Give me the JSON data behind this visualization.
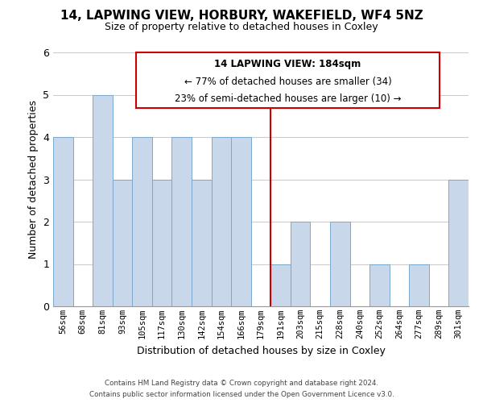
{
  "title": "14, LAPWING VIEW, HORBURY, WAKEFIELD, WF4 5NZ",
  "subtitle": "Size of property relative to detached houses in Coxley",
  "xlabel": "Distribution of detached houses by size in Coxley",
  "ylabel": "Number of detached properties",
  "categories": [
    "56sqm",
    "68sqm",
    "81sqm",
    "93sqm",
    "105sqm",
    "117sqm",
    "130sqm",
    "142sqm",
    "154sqm",
    "166sqm",
    "179sqm",
    "191sqm",
    "203sqm",
    "215sqm",
    "228sqm",
    "240sqm",
    "252sqm",
    "264sqm",
    "277sqm",
    "289sqm",
    "301sqm"
  ],
  "values": [
    4,
    0,
    5,
    3,
    4,
    3,
    4,
    3,
    4,
    4,
    0,
    1,
    2,
    0,
    2,
    0,
    1,
    0,
    1,
    0,
    3
  ],
  "bar_color": "#c8d8ea",
  "bar_edge_color": "#7aa8cc",
  "bar_edge_width": 0.7,
  "vline_x_index": 10.5,
  "vline_color": "#cc0000",
  "annotation_title": "14 LAPWING VIEW: 184sqm",
  "annotation_line1": "← 77% of detached houses are smaller (34)",
  "annotation_line2": "23% of semi-detached houses are larger (10) →",
  "annotation_box_color": "#ffffff",
  "annotation_box_edge_color": "#cc0000",
  "ylim": [
    0,
    6
  ],
  "yticks": [
    0,
    1,
    2,
    3,
    4,
    5,
    6
  ],
  "footer_line1": "Contains HM Land Registry data © Crown copyright and database right 2024.",
  "footer_line2": "Contains public sector information licensed under the Open Government Licence v3.0.",
  "background_color": "#ffffff",
  "grid_color": "#cccccc"
}
